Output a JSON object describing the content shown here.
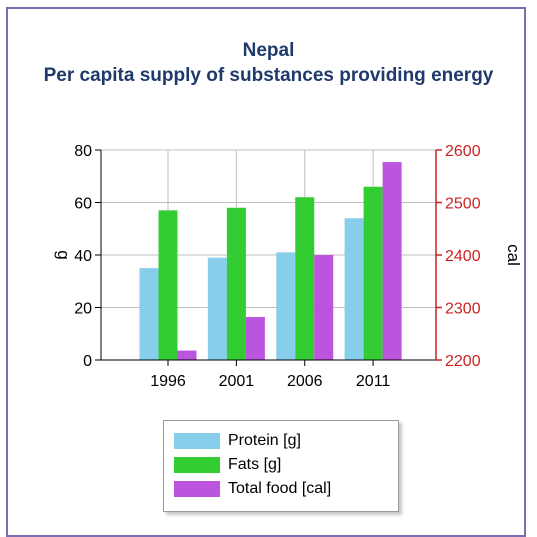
{
  "chart_data": {
    "type": "bar",
    "title": "Nepal",
    "subtitle": "Per capita supply of substances providing energy",
    "categories": [
      "1996",
      "2001",
      "2006",
      "2011"
    ],
    "series": [
      {
        "name": "Protein [g]",
        "axis": "left",
        "values": [
          35,
          39,
          41,
          54
        ],
        "color": "#87ceeb"
      },
      {
        "name": "Fats [g]",
        "axis": "left",
        "values": [
          57,
          58,
          62,
          66
        ],
        "color": "#33cc33"
      },
      {
        "name": "Total food [cal]",
        "axis": "right",
        "values": [
          2218,
          2282,
          2400,
          2577
        ],
        "color": "#bb55dd"
      }
    ],
    "ylabel_left": "g",
    "ylabel_right": "cal",
    "ylim_left": [
      0,
      80
    ],
    "ylim_right": [
      2200,
      2600
    ],
    "yticks_left": [
      "0",
      "20",
      "40",
      "60",
      "80"
    ],
    "yticks_right": [
      "2200",
      "2300",
      "2400",
      "2500",
      "2600"
    ],
    "right_axis_color": "#cc2222",
    "grid": true,
    "legend_position": "bottom"
  }
}
